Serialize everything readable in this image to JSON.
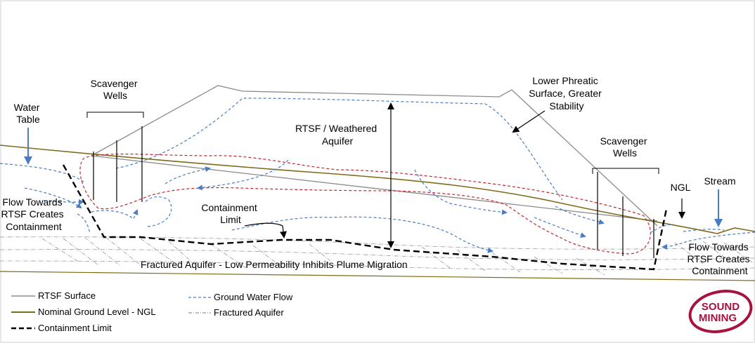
{
  "labels": {
    "water_table": [
      "Water",
      "Table"
    ],
    "scavenger_wells_left": [
      "Scavenger",
      "Wells"
    ],
    "scavenger_wells_right": [
      "Scavenger",
      "Wells"
    ],
    "lower_phreatic": [
      "Lower Phreatic",
      "Surface, Greater",
      "Stability"
    ],
    "rtsf_aquifer": [
      "RTSF / Weathered",
      "Aquifer"
    ],
    "flow_left": [
      "Flow Towards",
      "RTSF Creates",
      "Containment"
    ],
    "flow_right": [
      "Flow Towards",
      "RTSF Creates",
      "Containment"
    ],
    "containment_limit": [
      "Containment",
      "Limit"
    ],
    "ngl": "NGL",
    "stream": "Stream",
    "fractured": "Fractured Aquifer - Low Permeability Inhibits Plume Migration"
  },
  "legend": [
    {
      "label": "RTSF Surface",
      "style": "solid-gray",
      "color": "#8c8c8c"
    },
    {
      "label": "Nominal Ground Level - NGL",
      "style": "solid-olive",
      "color": "#7f6a1a"
    },
    {
      "label": "Containment Limit",
      "style": "dashed-black",
      "color": "#000000"
    },
    {
      "label": "Ground Water Flow",
      "style": "dashed-blue",
      "color": "#4a7cc4"
    },
    {
      "label": "Fractured Aquifer",
      "style": "dashdot-gray",
      "color": "#7a7a7a"
    }
  ],
  "logo": {
    "line1": "SOUND",
    "line2": "MINING",
    "color": "#a8123e"
  },
  "colors": {
    "plume": "#c8242c",
    "flow": "#4a7cc4",
    "ngl": "#7f6a1a",
    "rtsf": "#8c8c8c",
    "arrow": "#4a7cc4"
  }
}
